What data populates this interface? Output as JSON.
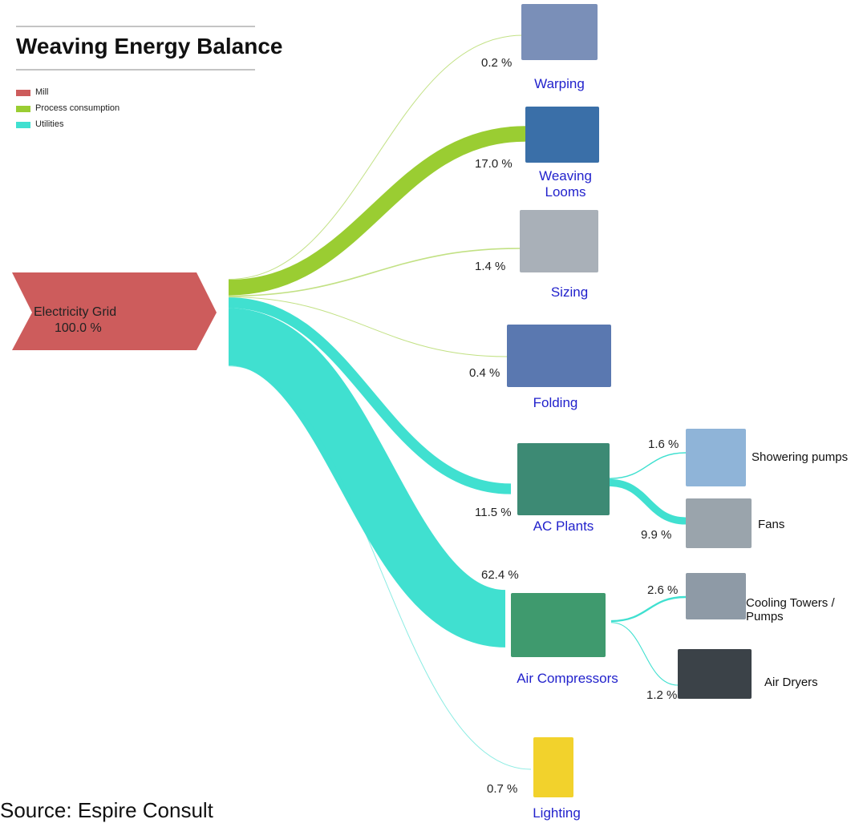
{
  "chart_data": {
    "type": "sankey",
    "title": "Weaving Energy Balance",
    "legend": [
      {
        "name": "Mill",
        "color": "#cd5c5c"
      },
      {
        "name": "Process consumption",
        "color": "#9acd32"
      },
      {
        "name": "Utilities",
        "color": "#40e0d0"
      }
    ],
    "source": {
      "name": "Electricity Grid",
      "value": 100.0,
      "value_label": "100.0 %",
      "color": "#cd5c5c"
    },
    "flows": [
      {
        "name": "Warping",
        "value": 0.2,
        "value_label": "0.2 %",
        "color": "#9acd32"
      },
      {
        "name": "Weaving Looms",
        "value": 17.0,
        "value_label": "17.0 %",
        "color": "#9acd32"
      },
      {
        "name": "Sizing",
        "value": 1.4,
        "value_label": "1.4 %",
        "color": "#9acd32"
      },
      {
        "name": "Folding",
        "value": 0.4,
        "value_label": "0.4 %",
        "color": "#9acd32"
      },
      {
        "name": "AC Plants",
        "value": 11.5,
        "value_label": "11.5 %",
        "color": "#40e0d0",
        "flows": [
          {
            "name": "Showering pumps",
            "value": 1.6,
            "value_label": "1.6 %",
            "color": "#40e0d0"
          },
          {
            "name": "Fans",
            "value": 9.9,
            "value_label": "9.9 %",
            "color": "#40e0d0"
          }
        ]
      },
      {
        "name": "Air Compressors",
        "value": 62.4,
        "value_label": "62.4 %",
        "color": "#40e0d0",
        "flows": [
          {
            "name": "Cooling Towers / Pumps",
            "value": 2.6,
            "value_label": "2.6 %",
            "color": "#40e0d0"
          },
          {
            "name": "Air Dryers",
            "value": 1.2,
            "value_label": "1.2 %",
            "color": "#40e0d0"
          }
        ]
      },
      {
        "name": "Lighting",
        "value": 0.7,
        "value_label": "0.7 %",
        "color": "#40e0d0"
      }
    ],
    "footer": "Source: Espire Consult"
  }
}
